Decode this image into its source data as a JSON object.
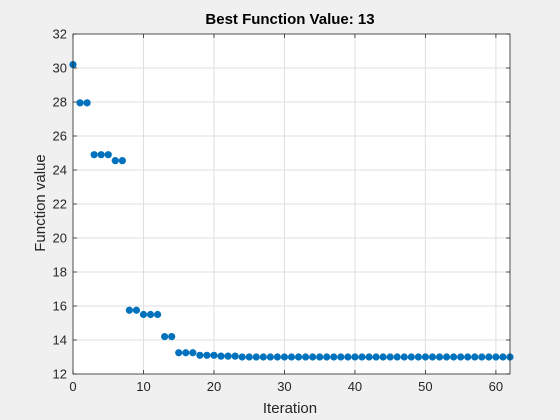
{
  "chart_data": {
    "type": "scatter",
    "title": "Best Function Value: 13",
    "xlabel": "Iteration",
    "ylabel": "Function value",
    "xlim": [
      0,
      62
    ],
    "ylim": [
      12,
      32
    ],
    "xticks": [
      0,
      10,
      20,
      30,
      40,
      50,
      60
    ],
    "yticks": [
      12,
      14,
      16,
      18,
      20,
      22,
      24,
      26,
      28,
      30,
      32
    ],
    "grid": true,
    "legend": "none",
    "colors": {
      "marker": "#0072bd",
      "grid": "#dfdfdf",
      "axes": "#262626",
      "plot_background": "#ffffff",
      "figure_background": "#f0f0f0"
    },
    "series": [
      {
        "x": [
          0,
          1,
          2,
          3,
          4,
          5,
          6,
          7,
          8,
          9,
          10,
          11,
          12,
          13,
          14,
          15,
          16,
          17,
          18,
          19,
          20,
          21,
          22,
          23,
          24,
          25,
          26,
          27,
          28,
          29,
          30,
          31,
          32,
          33,
          34,
          35,
          36,
          37,
          38,
          39,
          40,
          41,
          42,
          43,
          44,
          45,
          46,
          47,
          48,
          49,
          50,
          51,
          52,
          53,
          54,
          55,
          56,
          57,
          58,
          59,
          60,
          61,
          62
        ],
        "y": [
          30.2,
          27.95,
          27.95,
          24.9,
          24.9,
          24.9,
          24.55,
          24.55,
          15.75,
          15.75,
          15.5,
          15.5,
          15.5,
          14.2,
          14.2,
          13.25,
          13.25,
          13.25,
          13.1,
          13.1,
          13.1,
          13.05,
          13.05,
          13.05,
          13.0,
          13.0,
          13.0,
          13.0,
          13.0,
          13.0,
          13.0,
          13.0,
          13.0,
          13.0,
          13.0,
          13.0,
          13.0,
          13.0,
          13.0,
          13.0,
          13.0,
          13.0,
          13.0,
          13.0,
          13.0,
          13.0,
          13.0,
          13.0,
          13.0,
          13.0,
          13.0,
          13.0,
          13.0,
          13.0,
          13.0,
          13.0,
          13.0,
          13.0,
          13.0,
          13.0,
          13.0,
          13.0,
          13.0
        ]
      }
    ]
  }
}
